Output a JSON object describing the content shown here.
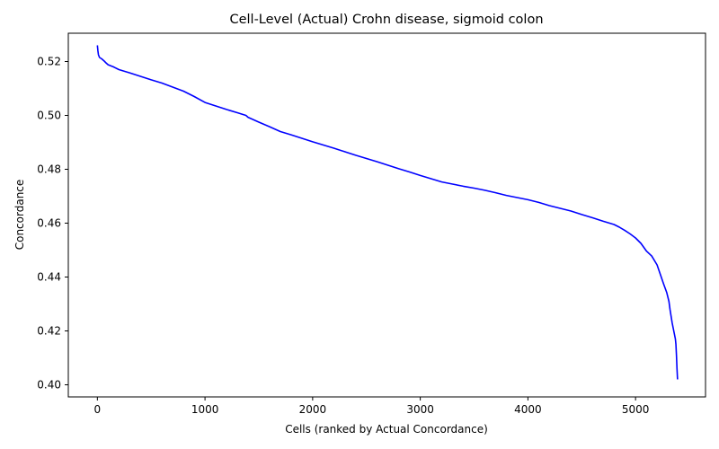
{
  "chart_data": {
    "type": "line",
    "title": "Cell-Level (Actual) Crohn disease, sigmoid colon",
    "xlabel": "Cells (ranked by Actual Concordance)",
    "ylabel": "Concordance",
    "xlim": [
      -270,
      5650
    ],
    "ylim": [
      0.3955,
      0.5305
    ],
    "xticks": [
      0,
      1000,
      2000,
      3000,
      4000,
      5000
    ],
    "xtick_labels": [
      "0",
      "1000",
      "2000",
      "3000",
      "4000",
      "5000"
    ],
    "yticks": [
      0.4,
      0.42,
      0.44,
      0.46,
      0.48,
      0.5,
      0.52
    ],
    "ytick_labels": [
      "0.40",
      "0.42",
      "0.44",
      "0.46",
      "0.48",
      "0.50",
      "0.52"
    ],
    "grid": false,
    "series": [
      {
        "color": "#0000ff",
        "x": [
          0,
          5,
          10,
          20,
          40,
          60,
          80,
          100,
          150,
          200,
          300,
          400,
          500,
          600,
          700,
          800,
          900,
          1000,
          1100,
          1200,
          1300,
          1380,
          1400,
          1500,
          1600,
          1700,
          1800,
          1900,
          2000,
          2100,
          2200,
          2300,
          2400,
          2500,
          2600,
          2700,
          2800,
          2900,
          3000,
          3100,
          3200,
          3300,
          3400,
          3500,
          3600,
          3700,
          3800,
          3900,
          4000,
          4100,
          4200,
          4300,
          4400,
          4500,
          4600,
          4700,
          4800,
          4850,
          4900,
          4950,
          5000,
          5050,
          5100,
          5150,
          5200,
          5230,
          5260,
          5290,
          5310,
          5320,
          5330,
          5340,
          5350,
          5360,
          5370,
          5375,
          5380,
          5385,
          5390
        ],
        "y": [
          0.526,
          0.524,
          0.5225,
          0.5215,
          0.521,
          0.5203,
          0.5195,
          0.5188,
          0.518,
          0.517,
          0.5158,
          0.5145,
          0.5132,
          0.512,
          0.5105,
          0.509,
          0.507,
          0.5048,
          0.5035,
          0.5022,
          0.501,
          0.5,
          0.4993,
          0.4975,
          0.4958,
          0.494,
          0.4928,
          0.4915,
          0.4902,
          0.489,
          0.4878,
          0.4865,
          0.4852,
          0.484,
          0.4828,
          0.4815,
          0.4802,
          0.479,
          0.4777,
          0.4765,
          0.4753,
          0.4745,
          0.4737,
          0.473,
          0.4722,
          0.4713,
          0.4703,
          0.4695,
          0.4687,
          0.4677,
          0.4665,
          0.4655,
          0.4645,
          0.4632,
          0.462,
          0.4607,
          0.4595,
          0.4585,
          0.4573,
          0.456,
          0.4545,
          0.4525,
          0.4497,
          0.4478,
          0.4445,
          0.441,
          0.4375,
          0.4342,
          0.431,
          0.428,
          0.4255,
          0.423,
          0.421,
          0.419,
          0.417,
          0.415,
          0.411,
          0.406,
          0.402
        ]
      }
    ]
  }
}
